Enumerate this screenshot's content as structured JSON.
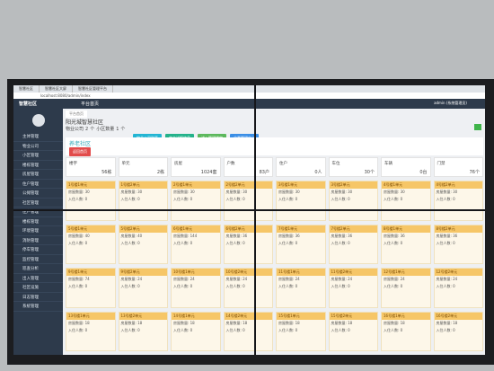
{
  "browser": {
    "tabs": [
      "智慧社区",
      "智慧社区大屏",
      "智慧社区管理平台"
    ],
    "url": "localhost:8080/admin/index"
  },
  "header": {
    "logo": "智慧社区",
    "menu": "平台首页",
    "user": "admin (系统管理员)"
  },
  "sidebar": [
    "主体管理",
    "物业公司",
    "小区管理",
    "楼栋管理",
    "房屋管理",
    "住户管理",
    "公摊管理",
    "社区管理",
    "住户管理",
    "楼栋管理",
    "环境管理",
    "消防管理",
    "停车管理",
    "监控管理",
    "巡查分析",
    "出入管理",
    "社区设施",
    "日志管理",
    "系统管理"
  ],
  "page": {
    "breadcrumb": "平台首页",
    "title": "阳光城智慧社区",
    "summary": [
      "物业公司",
      "2",
      "个",
      "小区数量",
      "1",
      "个"
    ],
    "buttons": [
      "物业公司列表",
      "房产详细信息",
      "进入管理楼宇",
      "全景管理中心"
    ],
    "section": "养老社区",
    "back": "返回首页"
  },
  "stats": [
    {
      "label": "楼宇",
      "value": "56栋"
    },
    {
      "label": "单元",
      "value": "2栋"
    },
    {
      "label": "房屋",
      "value": "1024套"
    },
    {
      "label": "户数",
      "value": "83户"
    },
    {
      "label": "住户",
      "value": "0人"
    },
    {
      "label": "车位",
      "value": "30个"
    },
    {
      "label": "车辆",
      "value": "0台"
    },
    {
      "label": "门禁",
      "value": "76个"
    }
  ],
  "cards": [
    {
      "title": "1号楼1单元",
      "lines": [
        "房屋数量: 30",
        "入住人数: 0"
      ]
    },
    {
      "title": "1号楼2单元",
      "lines": [
        "房屋数量: 30",
        "入住人数: 0"
      ]
    },
    {
      "title": "2号楼1单元",
      "lines": [
        "房屋数量: 30",
        "入住人数: 0"
      ]
    },
    {
      "title": "2号楼2单元",
      "lines": [
        "房屋数量: 30",
        "入住人数: 0"
      ]
    },
    {
      "title": "3号楼1单元",
      "lines": [
        "房屋数量: 30",
        "入住人数: 0"
      ]
    },
    {
      "title": "3号楼2单元",
      "lines": [
        "房屋数量: 30",
        "入住人数: 0"
      ]
    },
    {
      "title": "4号楼1单元",
      "lines": [
        "房屋数量: 30",
        "入住人数: 0"
      ]
    },
    {
      "title": "4号楼2单元",
      "lines": [
        "房屋数量: 30",
        "入住人数: 0"
      ]
    },
    {
      "title": "5号楼1单元",
      "lines": [
        "房屋数量: 40",
        "入住人数: 0"
      ]
    },
    {
      "title": "5号楼2单元",
      "lines": [
        "房屋数量: 40",
        "入住人数: 0"
      ]
    },
    {
      "title": "6号楼1单元",
      "lines": [
        "房屋数量: 144",
        "入住人数: 0"
      ]
    },
    {
      "title": "6号楼2单元",
      "lines": [
        "房屋数量: 36",
        "入住人数: 0"
      ]
    },
    {
      "title": "7号楼1单元",
      "lines": [
        "房屋数量: 36",
        "入住人数: 0"
      ]
    },
    {
      "title": "7号楼2单元",
      "lines": [
        "房屋数量: 36",
        "入住人数: 0"
      ]
    },
    {
      "title": "8号楼1单元",
      "lines": [
        "房屋数量: 36",
        "入住人数: 0"
      ]
    },
    {
      "title": "8号楼2单元",
      "lines": [
        "房屋数量: 36",
        "入住人数: 0"
      ]
    },
    {
      "title": "9号楼1单元",
      "lines": [
        "房屋数量: 74",
        "入住人数: 0"
      ]
    },
    {
      "title": "9号楼2单元",
      "lines": [
        "房屋数量: 24",
        "入住人数: 0"
      ]
    },
    {
      "title": "10号楼1单元",
      "lines": [
        "房屋数量: 24",
        "入住人数: 0"
      ]
    },
    {
      "title": "10号楼2单元",
      "lines": [
        "房屋数量: 24",
        "入住人数: 0"
      ]
    },
    {
      "title": "11号楼1单元",
      "lines": [
        "房屋数量: 24",
        "入住人数: 0"
      ]
    },
    {
      "title": "11号楼2单元",
      "lines": [
        "房屋数量: 24",
        "入住人数: 0"
      ]
    },
    {
      "title": "12号楼1单元",
      "lines": [
        "房屋数量: 24",
        "入住人数: 0"
      ]
    },
    {
      "title": "12号楼2单元",
      "lines": [
        "房屋数量: 24",
        "入住人数: 0"
      ]
    },
    {
      "title": "13号楼1单元",
      "lines": [
        "房屋数量: 18",
        "入住人数: 0"
      ]
    },
    {
      "title": "13号楼2单元",
      "lines": [
        "房屋数量: 18",
        "入住人数: 0"
      ]
    },
    {
      "title": "14号楼1单元",
      "lines": [
        "房屋数量: 18",
        "入住人数: 0"
      ]
    },
    {
      "title": "14号楼2单元",
      "lines": [
        "房屋数量: 18",
        "入住人数: 0"
      ]
    },
    {
      "title": "15号楼1单元",
      "lines": [
        "房屋数量: 18",
        "入住人数: 0"
      ]
    },
    {
      "title": "15号楼2单元",
      "lines": [
        "房屋数量: 18",
        "入住人数: 0"
      ]
    },
    {
      "title": "16号楼1单元",
      "lines": [
        "房屋数量: 18",
        "入住人数: 0"
      ]
    },
    {
      "title": "16号楼2单元",
      "lines": [
        "房屋数量: 18",
        "入住人数: 0"
      ]
    }
  ]
}
